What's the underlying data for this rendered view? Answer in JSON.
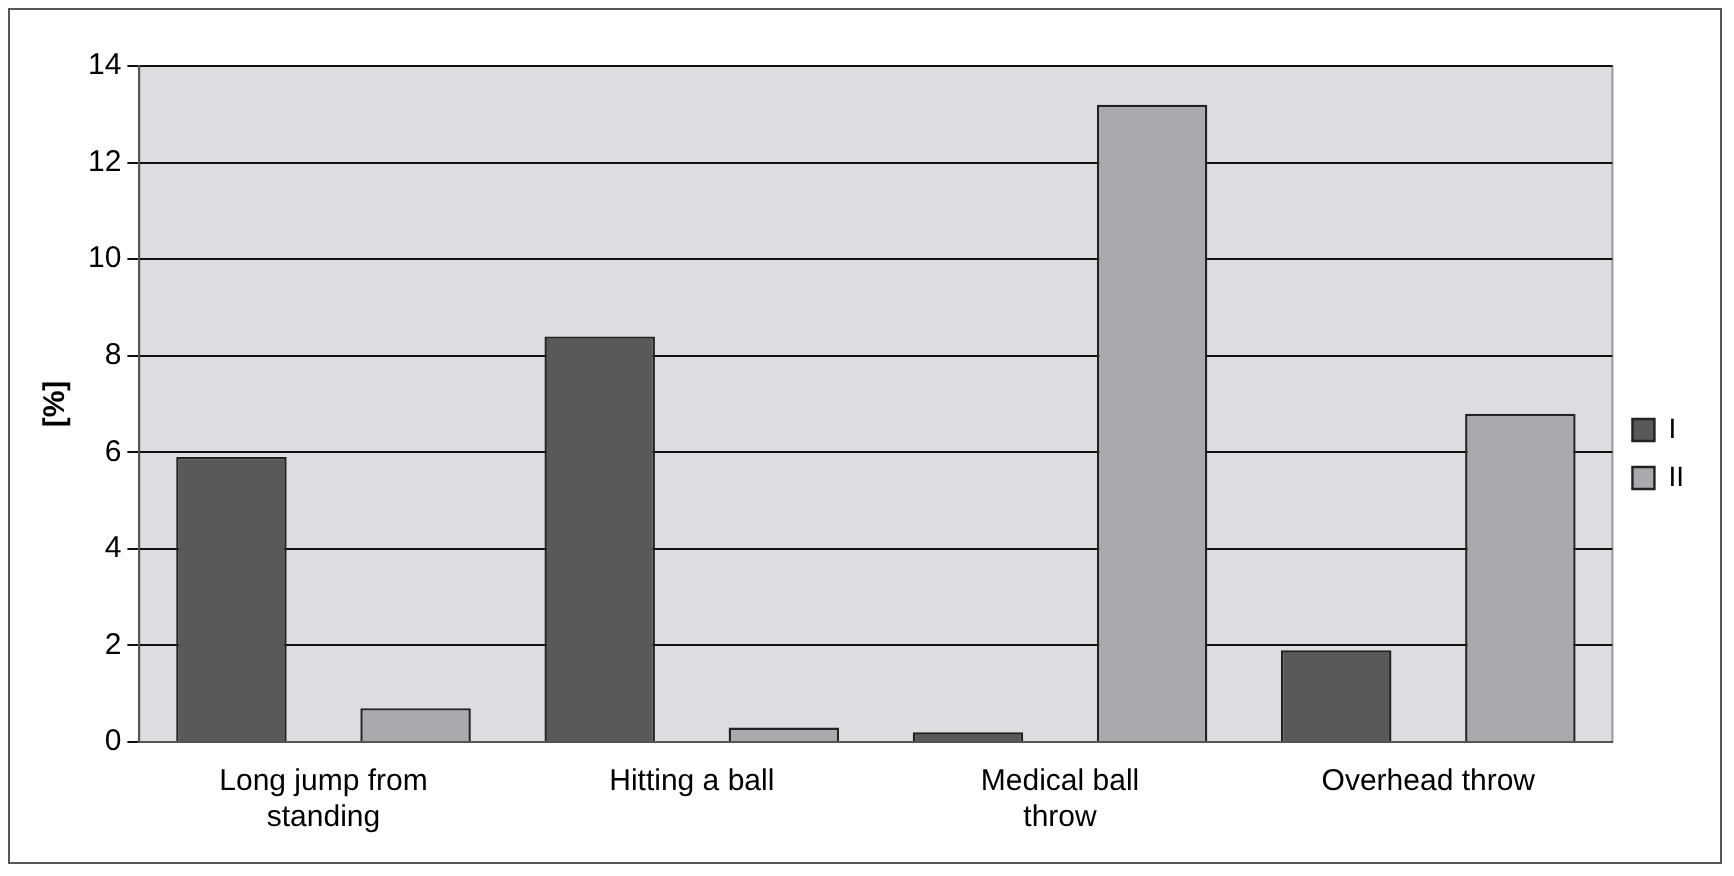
{
  "chart_data": {
    "type": "bar",
    "ylabel": "[%]",
    "categories": [
      "Long jump from standing",
      "Hitting a ball",
      "Medical ball throw",
      "Overhead throw"
    ],
    "series": [
      {
        "name": "I",
        "color": "#58595b",
        "values": [
          5.9,
          8.4,
          0.2,
          1.9
        ]
      },
      {
        "name": "II",
        "color": "#a9aaad",
        "values": [
          0.7,
          0.3,
          13.2,
          6.8
        ]
      }
    ],
    "ylim": [
      0,
      14
    ],
    "yticks": [
      0,
      2,
      4,
      6,
      8,
      10,
      12,
      14
    ],
    "grid": "y",
    "legend": "right"
  }
}
